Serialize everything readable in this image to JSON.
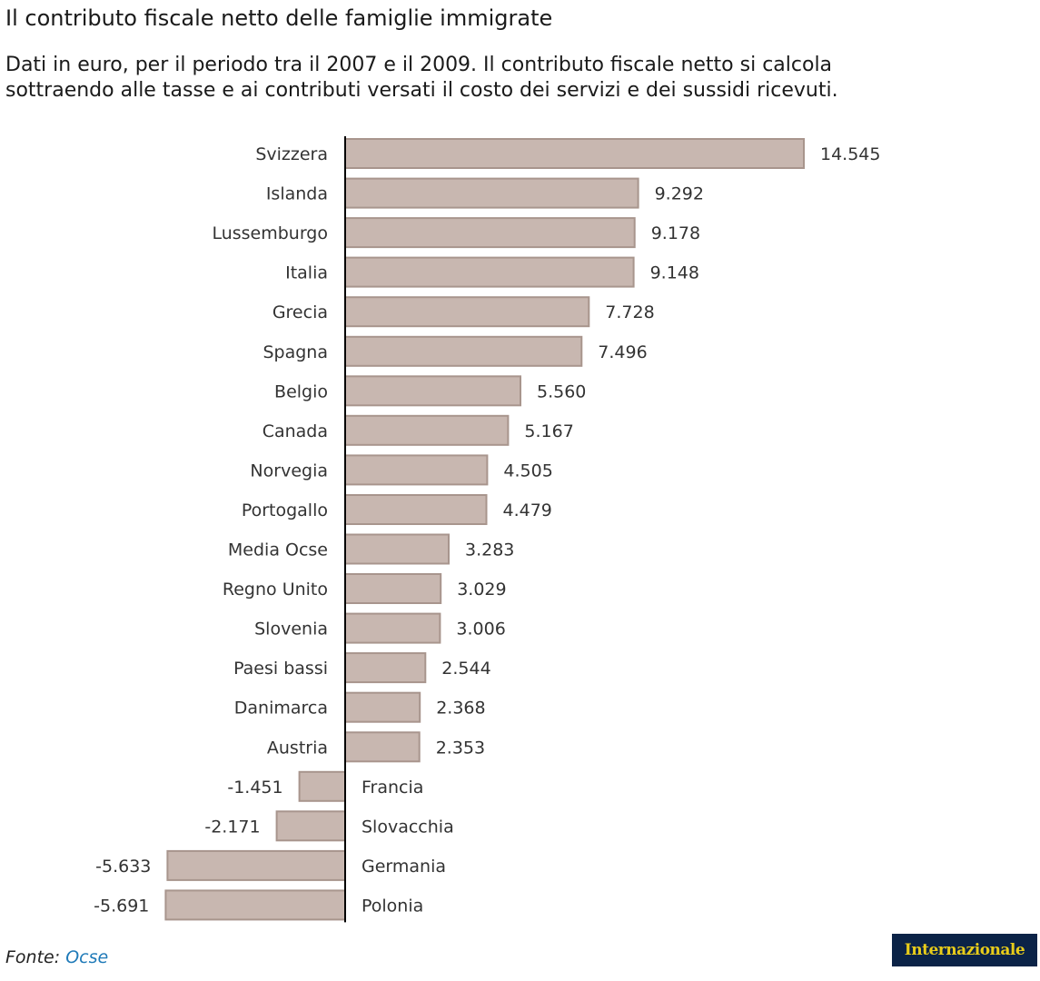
{
  "header": {
    "title": "Il contributo fiscale netto delle famiglie immigrate",
    "subtitle_line1": "Dati in euro, per il periodo tra il 2007 e il 2009. Il contributo fiscale netto si calcola",
    "subtitle_line2": "sottraendo alle tasse e ai contributi versati il costo dei servizi e dei sussidi ricevuti."
  },
  "footer": {
    "source_label": "Fonte:",
    "source_link": "Ocse",
    "logo_text": "Internazionale"
  },
  "colors": {
    "bar_fill": "#c8b7b0",
    "bar_stroke": "#a8958d",
    "axis": "#000000",
    "text": "#333333",
    "link": "#1f7ab8",
    "logo_bg": "#0b2347",
    "logo_text": "#e8cc1a"
  },
  "chart_data": {
    "type": "bar",
    "orientation": "horizontal",
    "title": "Il contributo fiscale netto delle famiglie immigrate",
    "xlabel": "",
    "ylabel": "",
    "grid": false,
    "categories": [
      "Svizzera",
      "Islanda",
      "Lussemburgo",
      "Italia",
      "Grecia",
      "Spagna",
      "Belgio",
      "Canada",
      "Norvegia",
      "Portogallo",
      "Media Ocse",
      "Regno Unito",
      "Slovenia",
      "Paesi bassi",
      "Danimarca",
      "Austria",
      "Francia",
      "Slovacchia",
      "Germania",
      "Polonia"
    ],
    "values": [
      14545,
      9292,
      9178,
      9148,
      7728,
      7496,
      5560,
      5167,
      4505,
      4479,
      3283,
      3029,
      3006,
      2544,
      2368,
      2353,
      -1451,
      -2171,
      -5633,
      -5691
    ],
    "value_labels": [
      "14.545",
      "9.292",
      "9.178",
      "9.148",
      "7.728",
      "7.496",
      "5.560",
      "5.167",
      "4.505",
      "4.479",
      "3.283",
      "3.029",
      "3.006",
      "2.544",
      "2.368",
      "2.353",
      "-1.451",
      "-2.171",
      "-5.633",
      "-5.691"
    ],
    "xlim": [
      -5691,
      14545
    ]
  }
}
